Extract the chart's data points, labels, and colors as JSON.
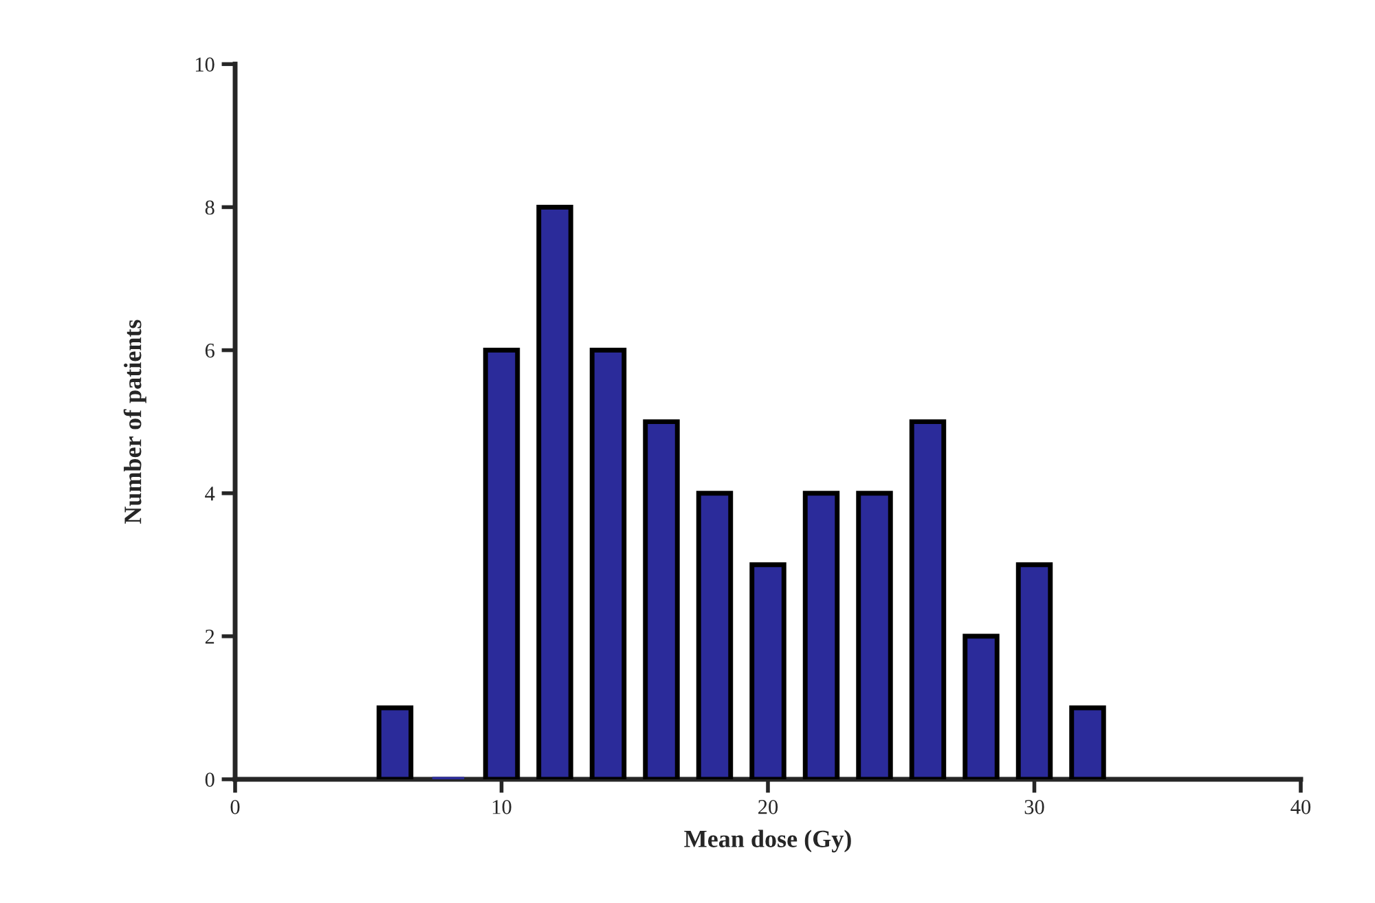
{
  "chart_data": {
    "type": "bar",
    "xlabel": "Mean dose (Gy)",
    "ylabel": "Number of patients",
    "x": [
      6,
      8,
      10,
      12,
      14,
      16,
      18,
      20,
      22,
      24,
      26,
      28,
      30,
      32
    ],
    "values": [
      1,
      0,
      6,
      8,
      6,
      5,
      4,
      3,
      4,
      4,
      5,
      2,
      3,
      1
    ],
    "color": "#2b2b9a",
    "xlim": [
      0,
      40
    ],
    "xticks": [
      0,
      10,
      20,
      30,
      40
    ],
    "ylim": [
      0,
      10
    ],
    "yticks": [
      0,
      2,
      4,
      6,
      8,
      10
    ],
    "grid": false
  }
}
